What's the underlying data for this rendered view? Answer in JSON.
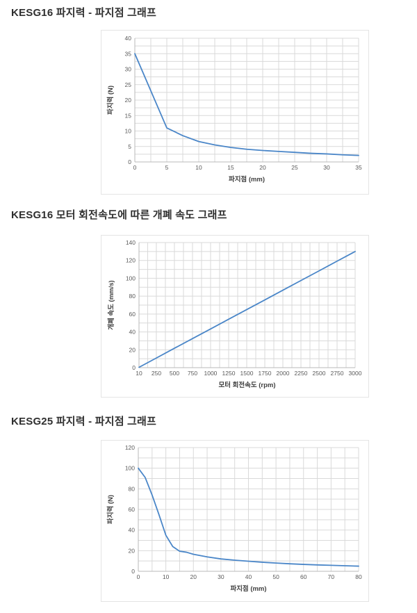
{
  "sections": [
    {
      "title": "KESG16 파지력 - 파지점 그래프"
    },
    {
      "title": "KESG16 모터 회전속도에 따른 개폐 속도 그래프"
    },
    {
      "title": "KESG25 파지력 - 파지점 그래프"
    }
  ],
  "colors": {
    "background": "#ffffff",
    "section_title": "#2f2f2f",
    "chart_border": "#e4e4e4",
    "line": "#4a86c8",
    "gridline": "#d9d9d9",
    "axis": "#b9b9b9",
    "tick_label": "#595959",
    "axis_title": "#3f3f3f"
  },
  "chart_data": [
    {
      "type": "line",
      "title": "KESG16 파지력 - 파지점 그래프",
      "xlabel": "파지점 (mm)",
      "ylabel": "파지력 (N)",
      "xlim": [
        0,
        35
      ],
      "ylim": [
        0,
        40
      ],
      "xticks": [
        0,
        5,
        10,
        15,
        20,
        25,
        30,
        35
      ],
      "yticks": [
        0,
        5,
        10,
        15,
        20,
        25,
        30,
        35,
        40
      ],
      "grid": true,
      "legend": "none",
      "x": [
        0,
        5,
        7.5,
        10,
        12.5,
        15,
        17.5,
        20,
        22.5,
        25,
        27.5,
        30,
        32.5,
        35
      ],
      "y": [
        35,
        11,
        8.5,
        6.6,
        5.5,
        4.7,
        4.1,
        3.7,
        3.4,
        3.1,
        2.8,
        2.6,
        2.3,
        2.1
      ],
      "line_color": "#4a86c8"
    },
    {
      "type": "line",
      "title": "KESG16 모터 회전속도에 따른 개폐 속도 그래프",
      "xlabel": "모터 회전속도 (rpm)",
      "ylabel": "개폐 속도 (mm/s)",
      "xlim": [
        10,
        3000
      ],
      "ylim": [
        0,
        140
      ],
      "xticks": [
        10,
        250,
        500,
        750,
        1000,
        1250,
        1500,
        1750,
        2000,
        2250,
        2500,
        2750,
        3000
      ],
      "yticks": [
        0,
        20,
        40,
        60,
        80,
        100,
        120,
        140
      ],
      "grid": true,
      "legend": "none",
      "x": [
        10,
        250,
        500,
        750,
        1000,
        1250,
        1500,
        1750,
        2000,
        2250,
        2500,
        2750,
        3000
      ],
      "y": [
        0.4,
        10.8,
        21.7,
        32.5,
        43.3,
        54.2,
        65,
        75.8,
        86.7,
        97.5,
        108.3,
        119.2,
        130
      ],
      "line_color": "#4a86c8"
    },
    {
      "type": "line",
      "title": "KESG25 파지력 - 파지점 그래프",
      "xlabel": "파지점 (mm)",
      "ylabel": "파지력 (N)",
      "xlim": [
        0,
        80
      ],
      "ylim": [
        0,
        120
      ],
      "xticks": [
        0,
        10,
        20,
        30,
        40,
        50,
        60,
        70,
        80
      ],
      "yticks": [
        0,
        20,
        40,
        60,
        80,
        100,
        120
      ],
      "grid": true,
      "legend": "none",
      "x": [
        0,
        2.5,
        5,
        7.5,
        10,
        12.5,
        15,
        17.5,
        20,
        25,
        30,
        35,
        40,
        45,
        50,
        55,
        60,
        65,
        70,
        75,
        80
      ],
      "y": [
        100,
        91,
        74,
        55,
        35,
        24,
        19.5,
        18.5,
        16.5,
        14,
        12,
        10.8,
        9.8,
        8.8,
        8,
        7.3,
        6.7,
        6.2,
        5.8,
        5.4,
        5
      ],
      "line_color": "#4a86c8"
    }
  ]
}
